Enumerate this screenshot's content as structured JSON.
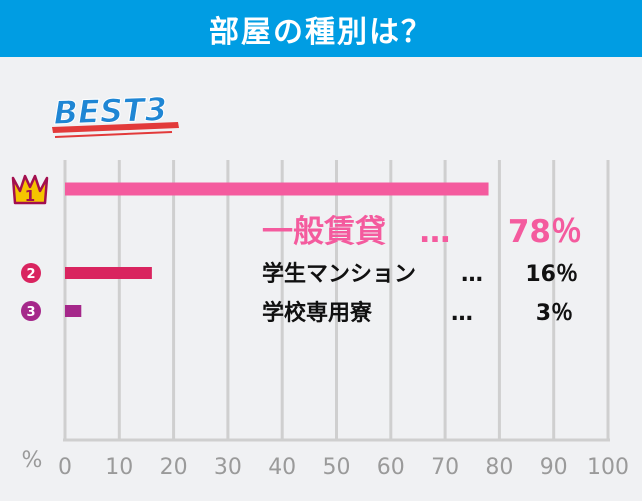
{
  "header": {
    "title": "部屋の種別は？"
  },
  "badge": {
    "text": "BEST3"
  },
  "colors": {
    "header_bg": "#009de3",
    "rank1": "#f45b9e",
    "rank2": "#d9245f",
    "rank3": "#a5288a",
    "axis": "#cfcfcf",
    "tick_text": "#9a9a9a"
  },
  "chart_data": {
    "type": "bar",
    "orientation": "horizontal",
    "categories": [
      "一般賃貸",
      "学生マンション",
      "学校専用寮"
    ],
    "values": [
      78,
      16,
      3
    ],
    "ranks": [
      "1",
      "2",
      "3"
    ],
    "separator": "…",
    "value_labels": [
      "78％",
      "16％",
      "3％"
    ],
    "xlabel": "%",
    "xlim": [
      0,
      100
    ],
    "xticks": [
      0,
      10,
      20,
      30,
      40,
      50,
      60,
      70,
      80,
      90,
      100
    ],
    "grid": true
  }
}
